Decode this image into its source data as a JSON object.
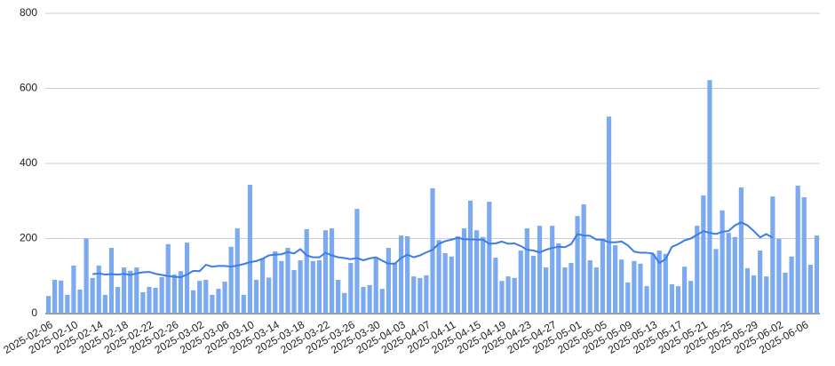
{
  "chart_data": {
    "type": "bar",
    "categories": [
      "2025-02-06",
      null,
      null,
      null,
      "2025-02-10",
      null,
      null,
      null,
      "2025-02-14",
      null,
      null,
      null,
      "2025-02-18",
      null,
      null,
      null,
      "2025-02-22",
      null,
      null,
      null,
      "2025-02-26",
      null,
      null,
      null,
      "2025-03-02",
      null,
      null,
      null,
      "2025-03-06",
      null,
      null,
      null,
      "2025-03-10",
      null,
      null,
      null,
      "2025-03-14",
      null,
      null,
      null,
      "2025-03-18",
      null,
      null,
      null,
      "2025-03-22",
      null,
      null,
      null,
      "2025-03-26",
      null,
      null,
      null,
      "2025-03-30",
      null,
      null,
      null,
      "2025-04-03",
      null,
      null,
      null,
      "2025-04-07",
      null,
      null,
      null,
      "2025-04-11",
      null,
      null,
      null,
      "2025-04-15",
      null,
      null,
      null,
      "2025-04-19",
      null,
      null,
      null,
      "2025-04-23",
      null,
      null,
      null,
      "2025-04-27",
      null,
      null,
      null,
      "2025-05-01",
      null,
      null,
      null,
      "2025-05-05",
      null,
      null,
      null,
      "2025-05-09",
      null,
      null,
      null,
      "2025-05-13",
      null,
      null,
      null,
      "2025-05-17",
      null,
      null,
      null,
      "2025-05-21",
      null,
      null,
      null,
      "2025-05-25",
      null,
      null,
      null,
      "2025-05-29",
      null,
      null,
      null,
      "2025-06-02",
      null,
      null,
      null,
      "2025-06-06",
      null,
      null
    ],
    "series": [
      {
        "type": "bar",
        "color": "#7baaf0",
        "values": [
          47,
          90,
          88,
          50,
          128,
          64,
          200,
          95,
          128,
          50,
          175,
          71,
          123,
          114,
          123,
          57,
          71,
          69,
          97,
          185,
          104,
          113,
          189,
          62,
          87,
          90,
          50,
          66,
          85,
          178,
          227,
          50,
          343,
          90,
          147,
          96,
          166,
          140,
          175,
          116,
          142,
          225,
          140,
          142,
          222,
          227,
          90,
          55,
          135,
          279,
          71,
          76,
          147,
          66,
          175,
          135,
          208,
          206,
          99,
          95,
          102,
          334,
          196,
          161,
          152,
          206,
          227,
          301,
          222,
          204,
          298,
          149,
          87,
          99,
          95,
          168,
          227,
          154,
          234,
          123,
          234,
          187,
          123,
          135,
          260,
          291,
          142,
          123,
          199,
          525,
          182,
          144,
          83,
          140,
          133,
          73,
          159,
          168,
          159,
          78,
          73,
          125,
          87,
          234,
          315,
          622,
          172,
          275,
          215,
          204,
          336,
          121,
          102,
          168,
          99,
          312,
          199,
          109,
          152,
          341,
          310,
          130,
          208
        ]
      },
      {
        "type": "line",
        "color": "#3d7de6",
        "values": [
          null,
          null,
          null,
          null,
          null,
          null,
          null,
          105,
          107,
          104,
          105,
          104,
          106,
          103,
          107,
          110,
          111,
          106,
          103,
          100,
          98,
          97,
          104,
          114,
          113,
          130,
          125,
          127,
          127,
          125,
          128,
          132,
          137,
          140,
          146,
          155,
          157,
          158,
          164,
          160,
          172,
          155,
          150,
          150,
          162,
          155,
          150,
          148,
          145,
          148,
          142,
          147,
          150,
          141,
          133,
          133,
          148,
          157,
          150,
          155,
          163,
          170,
          186,
          193,
          197,
          202,
          198,
          198,
          197,
          197,
          186,
          187,
          192,
          186,
          187,
          180,
          170,
          168,
          163,
          170,
          175,
          178,
          177,
          185,
          212,
          208,
          207,
          197,
          197,
          190,
          190,
          192,
          182,
          165,
          162,
          162,
          160,
          135,
          145,
          178,
          185,
          195,
          200,
          210,
          220,
          215,
          212,
          218,
          220,
          235,
          243,
          235,
          220,
          203,
          212,
          202,
          null,
          null,
          null,
          null,
          null,
          null,
          null
        ]
      }
    ],
    "ylim": [
      0,
      800
    ],
    "yticks": [
      0,
      200,
      400,
      600,
      800
    ],
    "grid": true
  }
}
